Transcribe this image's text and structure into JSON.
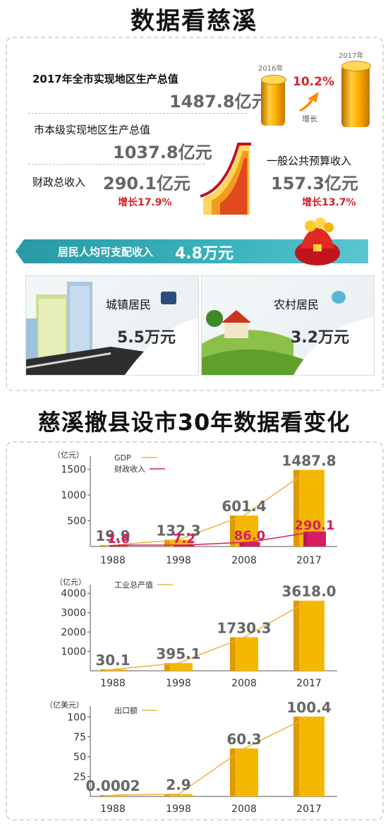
{
  "titles": {
    "main": "数据看慈溪",
    "second": "慈溪撤县设市30年数据看变化"
  },
  "summary": {
    "gdp_label": "2017年全市实现地区生产总值",
    "gdp_value": "1487.8亿元",
    "coin_2016": "2016年",
    "coin_2017": "2017年",
    "growth_pct": "10.2%",
    "growth_word": "增长",
    "city_gdp_label": "市本级实现地区生产总值",
    "city_gdp_value": "1037.8亿元",
    "fiscal_label": "财政总收入",
    "fiscal_value": "290.1亿元",
    "fiscal_growth": "增长17.9%",
    "budget_label": "一般公共预算收入",
    "budget_value": "157.3亿元",
    "budget_growth": "增长13.7%",
    "income_label": "居民人均可支配收入",
    "income_value": "4.8万元",
    "urban_label": "城镇居民",
    "urban_value": "5.5万元",
    "rural_label": "农村居民",
    "rural_value": "3.2万元"
  },
  "colors": {
    "bar": "#f5b800",
    "bar_dark": "#c98200",
    "fiscal": "#d81c62",
    "line": "#f0b040",
    "red": "#d2242c",
    "teal": "#2a9aa6"
  },
  "chart_data": [
    {
      "type": "bar",
      "ylabel": "（亿元）",
      "categories": [
        "1988",
        "1998",
        "2008",
        "2017"
      ],
      "yticks": [
        500,
        1000,
        1500
      ],
      "ylim": [
        0,
        1700
      ],
      "series": [
        {
          "name": "GDP",
          "values": [
            19.9,
            132.3,
            601.4,
            1487.8
          ],
          "labels": [
            "19.9",
            "132.3",
            "601.4",
            "1487.8"
          ]
        },
        {
          "name": "财政收入",
          "values": [
            1.6,
            7.2,
            86.0,
            290.1
          ],
          "labels": [
            "1.6",
            "7.2",
            "86.0",
            "290.1"
          ]
        }
      ]
    },
    {
      "type": "bar",
      "ylabel": "（亿元）",
      "categories": [
        "1988",
        "1998",
        "2008",
        "2017"
      ],
      "yticks": [
        1000,
        2000,
        3000,
        4000
      ],
      "ylim": [
        0,
        4300
      ],
      "series": [
        {
          "name": "工业总产值",
          "values": [
            30.1,
            395.1,
            1730.3,
            3618.0
          ],
          "labels": [
            "30.1",
            "395.1",
            "1730.3",
            "3618.0"
          ]
        }
      ]
    },
    {
      "type": "bar",
      "ylabel": "（亿美元）",
      "categories": [
        "1988",
        "1998",
        "2008",
        "2017"
      ],
      "yticks": [
        25,
        50,
        75,
        100
      ],
      "ylim": [
        0,
        110
      ],
      "series": [
        {
          "name": "出口额",
          "values": [
            0.0002,
            2.9,
            60.3,
            100.4
          ],
          "labels": [
            "0.0002",
            "2.9",
            "60.3",
            "100.4"
          ]
        }
      ]
    }
  ]
}
